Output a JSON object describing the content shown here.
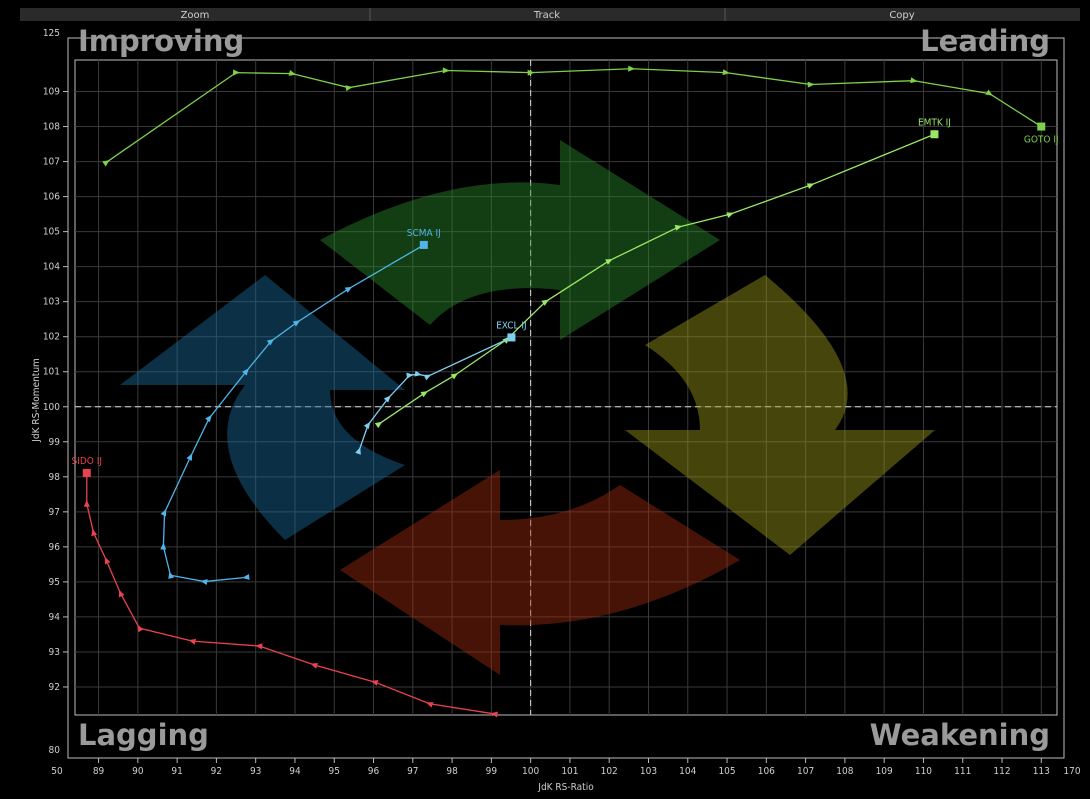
{
  "toolbar": [
    "Zoom",
    "Track",
    "Copy"
  ],
  "chart_data": {
    "type": "rrg",
    "quadrants": {
      "top_left": "Improving",
      "top_right": "Leading",
      "bottom_left": "Lagging",
      "bottom_right": "Weakening"
    },
    "xlabel": "JdK RS-Ratio",
    "ylabel": "JdK RS-Momentum",
    "xlim": [
      88.4,
      113.4
    ],
    "ylim": [
      91.2,
      109.9
    ],
    "xticks": [
      89,
      90,
      91,
      92,
      93,
      94,
      95,
      96,
      97,
      98,
      99,
      100,
      101,
      102,
      103,
      104,
      105,
      106,
      107,
      108,
      109,
      110,
      111,
      112,
      113
    ],
    "yticks": [
      92,
      93,
      94,
      95,
      96,
      97,
      98,
      99,
      100,
      101,
      102,
      103,
      104,
      105,
      106,
      107,
      108,
      109
    ],
    "x_break_values": [
      50,
      170
    ],
    "y_break_values": [
      80,
      125
    ],
    "center": {
      "x": 100,
      "y": 100
    },
    "grid": true,
    "series": [
      {
        "name": "GOTO IJ",
        "color": "#7ed04a",
        "x": [
          89.2,
          92.5,
          93.93,
          95.37,
          97.84,
          100.0,
          102.56,
          104.97,
          107.13,
          109.75,
          111.68,
          113.0
        ],
        "y": [
          106.98,
          109.54,
          109.51,
          109.11,
          109.6,
          109.54,
          109.65,
          109.54,
          109.2,
          109.31,
          108.94,
          108.0
        ]
      },
      {
        "name": "EMTK IJ",
        "color": "#9be866",
        "x": [
          96.14,
          97.3,
          98.07,
          99.39,
          100.38,
          102.0,
          103.76,
          105.08,
          107.13,
          110.28
        ],
        "y": [
          99.51,
          100.39,
          100.9,
          101.92,
          103.0,
          104.17,
          105.13,
          105.5,
          106.33,
          107.78
        ]
      },
      {
        "name": "SCMA IJ",
        "color": "#4fb4e8",
        "x": [
          92.76,
          91.69,
          90.83,
          90.65,
          90.68,
          91.34,
          91.82,
          92.76,
          93.39,
          94.05,
          95.37,
          97.28
        ],
        "y": [
          95.13,
          95.01,
          95.19,
          96.01,
          96.98,
          98.57,
          99.68,
          101.01,
          101.87,
          102.41,
          103.37,
          104.62
        ]
      },
      {
        "name": "EXCL IJ",
        "color": "#7fd0f0",
        "x": [
          95.63,
          95.86,
          96.37,
          96.92,
          97.13,
          97.38,
          99.51
        ],
        "y": [
          98.74,
          99.48,
          100.24,
          100.9,
          100.93,
          100.87,
          101.98
        ]
      },
      {
        "name": "SIDO IJ",
        "color": "#e8414f",
        "x": [
          99.08,
          97.43,
          96.03,
          94.49,
          93.09,
          91.39,
          90.04,
          89.56,
          89.2,
          88.87,
          88.7,
          88.7
        ],
        "y": [
          91.23,
          91.52,
          92.14,
          92.63,
          93.17,
          93.31,
          93.68,
          94.67,
          95.61,
          96.41,
          97.23,
          98.11
        ]
      }
    ]
  }
}
